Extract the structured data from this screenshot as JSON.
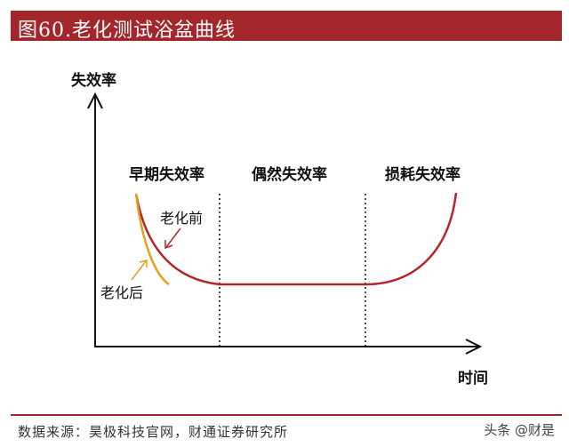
{
  "header": {
    "title": "图60.老化测试浴盆曲线"
  },
  "axes": {
    "y_label": "失效率",
    "x_label": "时间"
  },
  "regions": [
    {
      "label": "早期失效率"
    },
    {
      "label": "偶然失效率"
    },
    {
      "label": "损耗失效率"
    }
  ],
  "annotations": {
    "before_aging": "老化前",
    "after_aging": "老化后"
  },
  "colors": {
    "header_bg": "#a3262a",
    "before_curve": "#b5262c",
    "after_curve": "#e6a020",
    "axis": "#111111"
  },
  "footer": {
    "source": "数据来源：昊极科技官网，财通证券研究所",
    "watermark": "头条 @财是"
  }
}
